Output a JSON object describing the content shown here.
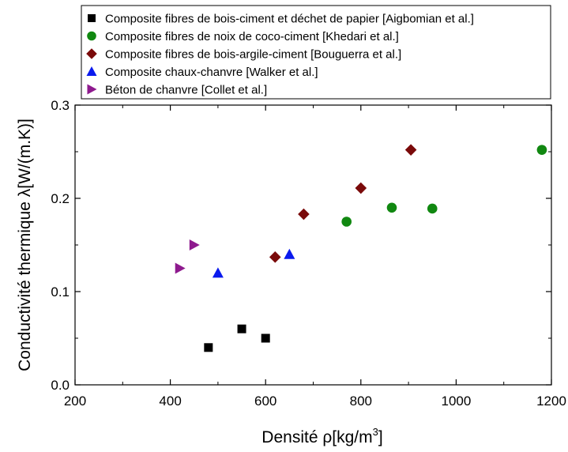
{
  "chart_data": {
    "type": "scatter",
    "title": "",
    "xlabel": "Densité ρ[kg/m",
    "xlabel_sup": "3",
    "xlabel_end": "]",
    "ylabel": "Conductivité thermique λ[W/(m.K)]",
    "xlim": [
      200,
      1200
    ],
    "ylim": [
      0.0,
      0.3
    ],
    "xticks": [
      200,
      400,
      600,
      800,
      1000,
      1200
    ],
    "xtick_labels": [
      "200",
      "400",
      "600",
      "800",
      "1000",
      "1200"
    ],
    "yticks": [
      0.0,
      0.1,
      0.2,
      0.3
    ],
    "ytick_labels": [
      "0.0",
      "0.1",
      "0.2",
      "0.3"
    ],
    "grid": false,
    "legend_position": "top-left",
    "series": [
      {
        "name": "Composite fibres de bois-ciment et déchet de papier  [Aigbomian et al.]",
        "marker": "square",
        "color": "#000000",
        "points": [
          [
            480,
            0.04
          ],
          [
            550,
            0.06
          ],
          [
            600,
            0.05
          ]
        ]
      },
      {
        "name": "Composite fibres de noix de coco-ciment [Khedari et al.]",
        "marker": "circle",
        "color": "#118811",
        "points": [
          [
            770,
            0.175
          ],
          [
            865,
            0.19
          ],
          [
            950,
            0.189
          ],
          [
            1180,
            0.252
          ]
        ]
      },
      {
        "name": "Composite fibres de bois-argile-ciment [Bouguerra et al.]",
        "marker": "diamond",
        "color": "#7a0a0a",
        "points": [
          [
            620,
            0.137
          ],
          [
            680,
            0.183
          ],
          [
            800,
            0.211
          ],
          [
            905,
            0.252
          ]
        ]
      },
      {
        "name": "Composite chaux-chanvre [Walker et al.]",
        "marker": "triangle-up",
        "color": "#0a1aee",
        "points": [
          [
            500,
            0.12
          ],
          [
            650,
            0.14
          ]
        ]
      },
      {
        "name": "Béton de chanvre [Collet et al.]",
        "marker": "triangle-right",
        "color": "#8e1a8e",
        "points": [
          [
            420,
            0.125
          ],
          [
            450,
            0.15
          ]
        ]
      }
    ]
  }
}
